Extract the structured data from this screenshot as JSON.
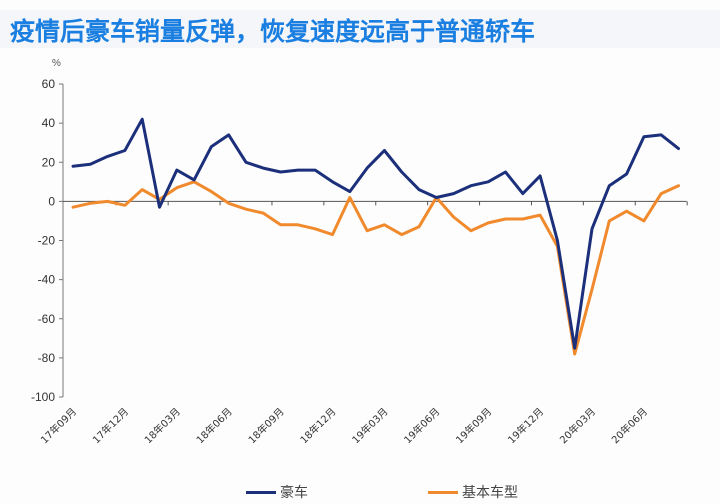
{
  "title": "疫情后豪车销量反弹，恢复速度远高于普通轿车",
  "chart_data": {
    "type": "line",
    "title": "疫情后豪车销量反弹，恢复速度远高于普通轿车",
    "ylabel": "%",
    "xlabel": "",
    "ylim": [
      -100,
      60
    ],
    "yticks": [
      60,
      40,
      20,
      0,
      -20,
      -40,
      -60,
      -80,
      -100
    ],
    "grid": false,
    "legend_position": "bottom",
    "x": [
      "17年09月",
      "17年10月",
      "17年11月",
      "17年12月",
      "18年01月",
      "18年02月",
      "18年03月",
      "18年04月",
      "18年05月",
      "18年06月",
      "18年07月",
      "18年08月",
      "18年09月",
      "18年10月",
      "18年11月",
      "18年12月",
      "19年01月",
      "19年02月",
      "19年03月",
      "19年04月",
      "19年05月",
      "19年06月",
      "19年07月",
      "19年08月",
      "19年09月",
      "19年10月",
      "19年11月",
      "19年12月",
      "20年01月",
      "20年02月",
      "20年03月",
      "20年04月",
      "20年05月",
      "20年06月",
      "20年07月",
      "20年08月"
    ],
    "xtick_labels": [
      "17年09月",
      "17年12月",
      "18年03月",
      "18年06月",
      "18年09月",
      "18年12月",
      "19年03月",
      "19年06月",
      "19年09月",
      "19年12月",
      "20年03月",
      "20年06月"
    ],
    "series": [
      {
        "name": "豪车",
        "color": "#1b2f7a",
        "values": [
          18,
          19,
          23,
          26,
          42,
          -3,
          16,
          11,
          28,
          34,
          20,
          17,
          15,
          16,
          16,
          10,
          5,
          17,
          26,
          15,
          6,
          2,
          4,
          8,
          10,
          15,
          4,
          13,
          -20,
          -75,
          -14,
          8,
          14,
          33,
          34,
          27
        ]
      },
      {
        "name": "基本车型",
        "color": "#f08a2c",
        "values": [
          -3,
          -1,
          0,
          -2,
          6,
          1,
          7,
          10,
          5,
          -1,
          -4,
          -6,
          -12,
          -12,
          -14,
          -17,
          2,
          -15,
          -12,
          -17,
          -13,
          2,
          -8,
          -15,
          -11,
          -9,
          -9,
          -7,
          -23,
          -78,
          -45,
          -10,
          -5,
          -10,
          4,
          8
        ]
      }
    ]
  },
  "legend": {
    "items": [
      {
        "label": "豪车"
      },
      {
        "label": "基本车型"
      }
    ]
  },
  "colors": {
    "title": "#1a7fe0",
    "luxury": "#1b2f7a",
    "basic": "#f08a2c"
  }
}
